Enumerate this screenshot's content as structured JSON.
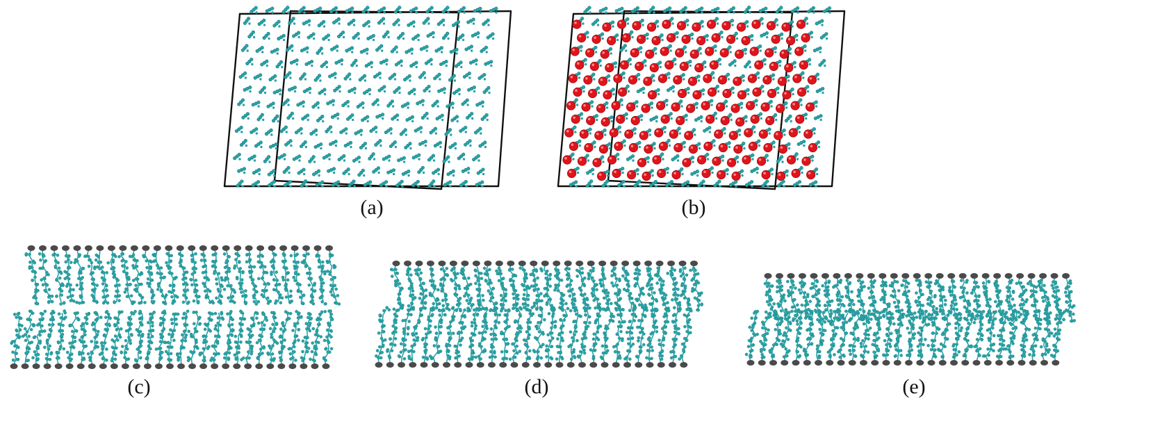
{
  "colors": {
    "carbon": "#2AA3A6",
    "carbon_dark": "#1B7F82",
    "oxygen": "#E0141B",
    "head_group": "#4A4A4A",
    "box_edge": "#111111",
    "background": "#FFFFFF"
  },
  "panels": [
    {
      "id": "a",
      "caption": "(a)",
      "content": "crystal box with molecules"
    },
    {
      "id": "b",
      "caption": "(b)",
      "content": "crystal box with molecules and oxygen spheres"
    },
    {
      "id": "c",
      "caption": "(c)",
      "content": "two separated monolayers"
    },
    {
      "id": "d",
      "caption": "(d)",
      "content": "two monolayers in contact"
    },
    {
      "id": "e",
      "caption": "(e)",
      "content": "merged bilayer"
    }
  ]
}
